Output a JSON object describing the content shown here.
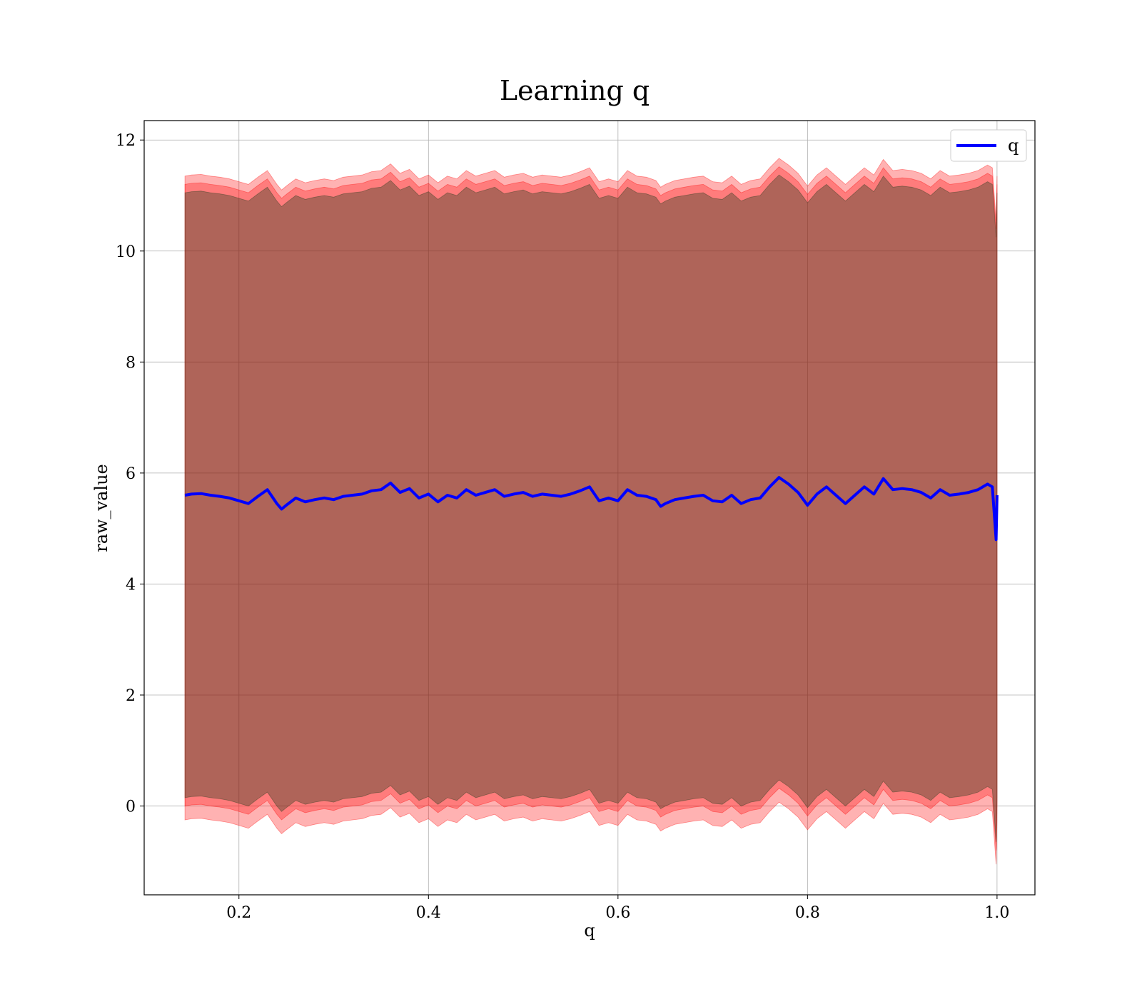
{
  "chart_data": {
    "type": "line",
    "title": "Learning q",
    "xlabel": "q",
    "ylabel": "raw_value",
    "xlim": [
      0.1,
      1.04
    ],
    "ylim": [
      -1.6,
      12.35
    ],
    "x_ticks": [
      0.2,
      0.4,
      0.6,
      0.8,
      1.0
    ],
    "y_ticks": [
      0,
      2,
      4,
      6,
      8,
      10,
      12
    ],
    "x_tick_labels": [
      "0.2",
      "0.4",
      "0.6",
      "0.8",
      "1.0"
    ],
    "y_tick_labels": [
      "0",
      "2",
      "4",
      "6",
      "8",
      "10",
      "12"
    ],
    "grid": true,
    "legend_position": "top-right",
    "series": [
      {
        "name": "q",
        "color": "#0000ff",
        "x": [
          0.143,
          0.15,
          0.16,
          0.17,
          0.18,
          0.19,
          0.2,
          0.21,
          0.22,
          0.23,
          0.24,
          0.245,
          0.25,
          0.26,
          0.27,
          0.28,
          0.29,
          0.3,
          0.31,
          0.32,
          0.33,
          0.34,
          0.35,
          0.36,
          0.37,
          0.38,
          0.39,
          0.4,
          0.41,
          0.42,
          0.43,
          0.44,
          0.45,
          0.46,
          0.47,
          0.48,
          0.49,
          0.5,
          0.51,
          0.52,
          0.53,
          0.54,
          0.55,
          0.56,
          0.57,
          0.58,
          0.59,
          0.6,
          0.61,
          0.62,
          0.63,
          0.64,
          0.645,
          0.65,
          0.66,
          0.67,
          0.68,
          0.69,
          0.7,
          0.71,
          0.72,
          0.73,
          0.74,
          0.75,
          0.76,
          0.77,
          0.78,
          0.79,
          0.8,
          0.81,
          0.82,
          0.83,
          0.84,
          0.85,
          0.86,
          0.87,
          0.88,
          0.89,
          0.9,
          0.91,
          0.92,
          0.93,
          0.94,
          0.95,
          0.96,
          0.97,
          0.98,
          0.99,
          0.995,
          0.999,
          1.0
        ],
        "y": [
          5.6,
          5.62,
          5.63,
          5.6,
          5.58,
          5.55,
          5.5,
          5.45,
          5.58,
          5.7,
          5.45,
          5.35,
          5.42,
          5.55,
          5.48,
          5.52,
          5.55,
          5.52,
          5.58,
          5.6,
          5.62,
          5.68,
          5.7,
          5.82,
          5.65,
          5.72,
          5.55,
          5.62,
          5.48,
          5.6,
          5.55,
          5.7,
          5.6,
          5.65,
          5.7,
          5.58,
          5.62,
          5.65,
          5.58,
          5.62,
          5.6,
          5.58,
          5.62,
          5.68,
          5.75,
          5.5,
          5.55,
          5.5,
          5.7,
          5.6,
          5.58,
          5.52,
          5.4,
          5.45,
          5.52,
          5.55,
          5.58,
          5.6,
          5.5,
          5.48,
          5.6,
          5.45,
          5.52,
          5.55,
          5.75,
          5.92,
          5.8,
          5.65,
          5.42,
          5.62,
          5.75,
          5.6,
          5.45,
          5.6,
          5.75,
          5.62,
          5.9,
          5.7,
          5.72,
          5.7,
          5.65,
          5.55,
          5.7,
          5.6,
          5.62,
          5.65,
          5.7,
          5.8,
          5.75,
          4.8,
          5.6
        ]
      }
    ],
    "bands": [
      {
        "name": "",
        "color": "#ff0000",
        "opacity": 0.3,
        "outer": true
      },
      {
        "name": "",
        "color": "#ff0000",
        "opacity": 0.3,
        "outer": false
      },
      {
        "name": "",
        "color": "#1a3a1a",
        "opacity": 0.35,
        "outer": false
      }
    ]
  }
}
